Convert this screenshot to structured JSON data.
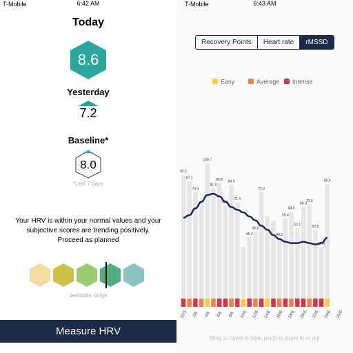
{
  "left": {
    "status": {
      "carrier": "T-Mobile",
      "time": "6:42 AM"
    },
    "today": {
      "label": "Today",
      "value": "8.6"
    },
    "yesterday": {
      "label": "Yesterday",
      "value": "7.2"
    },
    "baseline": {
      "label": "Baseline*",
      "value": "8.0",
      "note": "*Last 7 days"
    },
    "message": "Your HRV is within your normal values and your subjective scores are trending positively. Proceed as planned",
    "range_label": "desirable range",
    "button": "Measure HRV"
  },
  "right": {
    "status": {
      "carrier": "T-Mobile",
      "time": "6:43 AM"
    },
    "tabs": [
      "Recovery Points",
      "Heart rate",
      "rMSSD"
    ],
    "selected_tab": 2,
    "hint": "Drag to move in time, pinch to zoom in or out",
    "chart_data": {
      "type": "bar",
      "legend": [
        {
          "name": "Easy",
          "color": "#f7cc3d"
        },
        {
          "name": "Average",
          "color": "#e9834a"
        },
        {
          "name": "Intense",
          "color": "#d8324b"
        }
      ],
      "values": [
        92.1,
        87.1,
        79.0,
        72,
        100.7,
        81.9,
        85.8,
        69.1,
        84.6,
        71.4,
        38,
        45.2,
        49.6,
        79.3,
        61,
        58,
        44.5,
        59.4,
        64.5,
        52.1,
        68.0,
        70.0,
        50.8,
        37.8,
        85.0
      ],
      "value_labels": [
        "92.1",
        "87.1",
        "79.0",
        null,
        "100.7",
        "81.9",
        "85.8",
        "69.1",
        "84.6",
        "71.4",
        null,
        "45.2",
        "49.6",
        "79.3",
        null,
        null,
        "44.5",
        "59.4",
        "64.5",
        "52.1",
        "68.0",
        "70.0",
        "50.8",
        "37.8",
        "85.0"
      ],
      "intensity": [
        2,
        1,
        2,
        1,
        0,
        1,
        2,
        2,
        1,
        2,
        0,
        2,
        1,
        2,
        0,
        2,
        1,
        2,
        1,
        2,
        2,
        1,
        2,
        2,
        0
      ],
      "trend": [
        60,
        62,
        67,
        72,
        77,
        78,
        76,
        72,
        68,
        66,
        64,
        61,
        58,
        54,
        51,
        47,
        44,
        42,
        41,
        41,
        42,
        41,
        40,
        41,
        45
      ],
      "x_labels": [
        "31/5",
        "2/6",
        "4/6",
        "6/6",
        "8/6",
        "10/6",
        "12/6",
        "14/6",
        "16/6",
        "18/6",
        "20/6",
        "22/6",
        "24/6",
        "26/6"
      ],
      "bar_color": "#e6e6e6",
      "trend_color": "#1d2b4f",
      "ylim": [
        0,
        110
      ]
    }
  }
}
